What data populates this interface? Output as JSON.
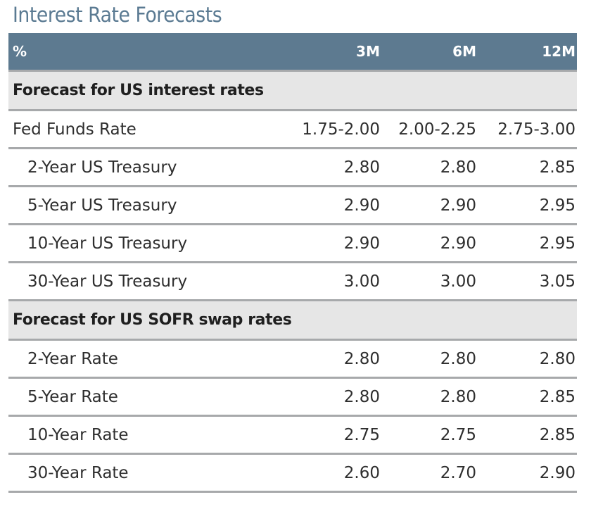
{
  "title": "Interest Rate Forecasts",
  "header": {
    "unit": "%",
    "columns": [
      "3M",
      "6M",
      "12M"
    ]
  },
  "sections": [
    {
      "heading": "Forecast for US interest rates",
      "rows": [
        {
          "label": "Fed Funds Rate",
          "values": [
            "1.75-2.00",
            "2.00-2.25",
            "2.75-3.00"
          ]
        },
        {
          "label": "2-Year US Treasury",
          "values": [
            "2.80",
            "2.80",
            "2.85"
          ]
        },
        {
          "label": "5-Year US Treasury",
          "values": [
            "2.90",
            "2.90",
            "2.95"
          ]
        },
        {
          "label": "10-Year US Treasury",
          "values": [
            "2.90",
            "2.90",
            "2.95"
          ]
        },
        {
          "label": "30-Year US Treasury",
          "values": [
            "3.00",
            "3.00",
            "3.05"
          ]
        }
      ]
    },
    {
      "heading": "Forecast for US SOFR swap rates",
      "rows": [
        {
          "label": "2-Year Rate",
          "values": [
            "2.80",
            "2.80",
            "2.80"
          ]
        },
        {
          "label": "5-Year Rate",
          "values": [
            "2.80",
            "2.80",
            "2.85"
          ]
        },
        {
          "label": "10-Year Rate",
          "values": [
            "2.75",
            "2.75",
            "2.85"
          ]
        },
        {
          "label": "30-Year Rate",
          "values": [
            "2.60",
            "2.70",
            "2.90"
          ]
        }
      ]
    }
  ]
}
